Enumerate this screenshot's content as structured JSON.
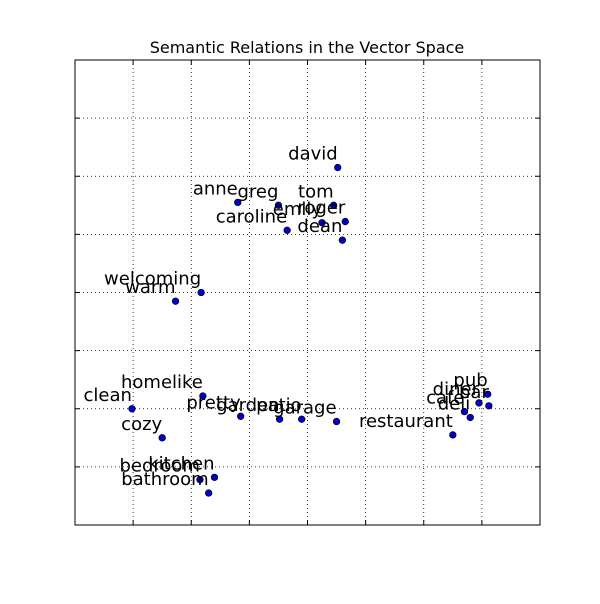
{
  "chart_data": {
    "type": "scatter",
    "title": "Semantic Relations in the Vector Space",
    "xlabel": "",
    "ylabel": "",
    "xlim": [
      -1.0,
      7.0
    ],
    "ylim": [
      -1.0,
      7.0
    ],
    "xticks": [
      0,
      1,
      2,
      3,
      4,
      5,
      6
    ],
    "yticks": [
      0,
      1,
      2,
      3,
      4,
      5,
      6
    ],
    "tick_labels_visible": false,
    "grid": true,
    "grid_style": "dotted",
    "marker_color": "#0000cc",
    "points": [
      {
        "label": "david",
        "x": 3.52,
        "y": 5.15
      },
      {
        "label": "anne",
        "x": 1.8,
        "y": 4.55
      },
      {
        "label": "greg",
        "x": 2.5,
        "y": 4.5
      },
      {
        "label": "tom",
        "x": 3.45,
        "y": 4.5
      },
      {
        "label": "roger",
        "x": 3.65,
        "y": 4.22
      },
      {
        "label": "emily",
        "x": 3.25,
        "y": 4.2
      },
      {
        "label": "caroline",
        "x": 2.65,
        "y": 4.07
      },
      {
        "label": "dean",
        "x": 3.6,
        "y": 3.9
      },
      {
        "label": "welcoming",
        "x": 1.17,
        "y": 3.0
      },
      {
        "label": "warm",
        "x": 0.73,
        "y": 2.85
      },
      {
        "label": "homelike",
        "x": 1.2,
        "y": 1.22
      },
      {
        "label": "clean",
        "x": -0.02,
        "y": 1.0
      },
      {
        "label": "pretty",
        "x": 1.85,
        "y": 0.87
      },
      {
        "label": "garden",
        "x": 2.52,
        "y": 0.82
      },
      {
        "label": "patio",
        "x": 2.9,
        "y": 0.82
      },
      {
        "label": "garage",
        "x": 3.5,
        "y": 0.78
      },
      {
        "label": "restaurant",
        "x": 5.5,
        "y": 0.55
      },
      {
        "label": "cozy",
        "x": 0.5,
        "y": 0.5
      },
      {
        "label": "pub",
        "x": 6.1,
        "y": 1.25
      },
      {
        "label": "bar",
        "x": 6.12,
        "y": 1.05
      },
      {
        "label": "diner",
        "x": 5.95,
        "y": 1.1
      },
      {
        "label": "cafe",
        "x": 5.7,
        "y": 0.95
      },
      {
        "label": "deli",
        "x": 5.8,
        "y": 0.85
      },
      {
        "label": "kitchen",
        "x": 1.4,
        "y": -0.18
      },
      {
        "label": "bedroom",
        "x": 1.15,
        "y": -0.22
      },
      {
        "label": "bathroom",
        "x": 1.3,
        "y": -0.45
      }
    ]
  }
}
